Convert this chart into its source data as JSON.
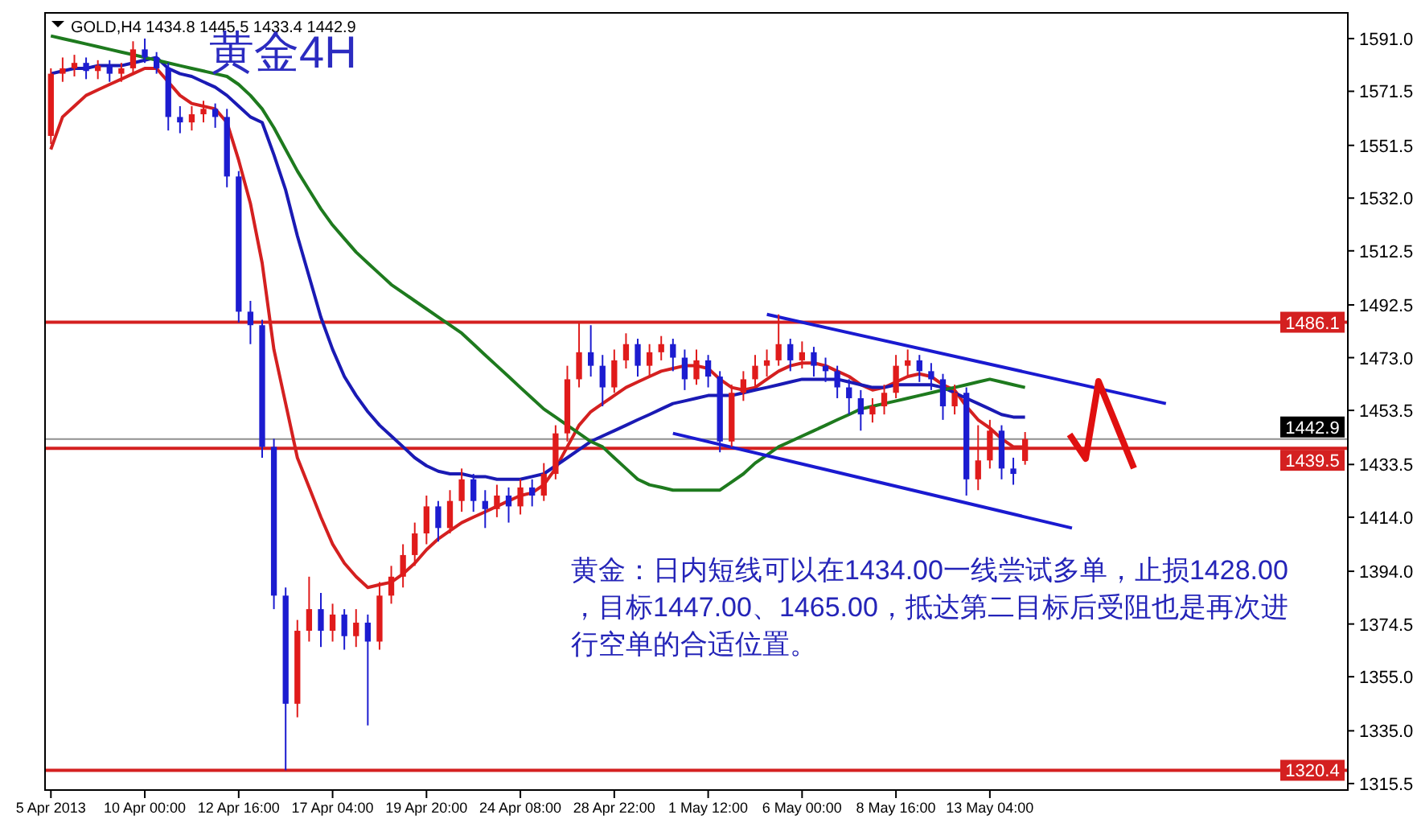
{
  "chart_data": {
    "type": "candlestick",
    "title": "黄金4H",
    "subtitle": "GOLD,H4  1434.8 1445.5 1433.4 1442.9",
    "categories": [
      "5 Apr 2013",
      null,
      null,
      null,
      null,
      null,
      null,
      null,
      "10 Apr 00:00",
      null,
      null,
      null,
      null,
      null,
      null,
      null,
      "12 Apr 16:00",
      null,
      null,
      null,
      null,
      null,
      null,
      null,
      "17 Apr 04:00",
      null,
      null,
      null,
      null,
      null,
      null,
      null,
      "19 Apr 20:00",
      null,
      null,
      null,
      null,
      null,
      null,
      null,
      "24 Apr 08:00",
      null,
      null,
      null,
      null,
      null,
      null,
      null,
      "28 Apr 22:00",
      null,
      null,
      null,
      null,
      null,
      null,
      null,
      "1 May 12:00",
      null,
      null,
      null,
      null,
      null,
      null,
      null,
      "6 May 00:00",
      null,
      null,
      null,
      null,
      null,
      null,
      null,
      "8 May 16:00",
      null,
      null,
      null,
      null,
      null,
      null,
      null,
      "13 May 04:00",
      null,
      null,
      null,
      null,
      null,
      null,
      null,
      null,
      null,
      null,
      null,
      null,
      null,
      null,
      null,
      null,
      null,
      null,
      null,
      null,
      null,
      null,
      null,
      null,
      null,
      null,
      null,
      null,
      null,
      null
    ],
    "ohlc": [
      [
        1555,
        1580,
        1552,
        1578
      ],
      [
        1578,
        1584,
        1575,
        1580
      ],
      [
        1580,
        1585,
        1577,
        1582
      ],
      [
        1582,
        1584,
        1576,
        1579
      ],
      [
        1579,
        1583,
        1576,
        1581
      ],
      [
        1581,
        1583,
        1575,
        1578
      ],
      [
        1578,
        1582,
        1575,
        1580
      ],
      [
        1580,
        1590,
        1578,
        1587
      ],
      [
        1587,
        1591,
        1582,
        1584
      ],
      [
        1584,
        1586,
        1578,
        1580
      ],
      [
        1580,
        1582,
        1557,
        1562
      ],
      [
        1562,
        1566,
        1556,
        1560
      ],
      [
        1560,
        1566,
        1557,
        1563
      ],
      [
        1563,
        1568,
        1560,
        1565
      ],
      [
        1565,
        1567,
        1558,
        1562
      ],
      [
        1562,
        1565,
        1536,
        1540
      ],
      [
        1540,
        1542,
        1486,
        1490
      ],
      [
        1490,
        1494,
        1478,
        1485
      ],
      [
        1485,
        1487,
        1436,
        1440
      ],
      [
        1440,
        1443,
        1380,
        1385
      ],
      [
        1385,
        1388,
        1320.4,
        1345
      ],
      [
        1345,
        1376,
        1340,
        1372
      ],
      [
        1372,
        1392,
        1368,
        1380
      ],
      [
        1380,
        1386,
        1366,
        1372
      ],
      [
        1372,
        1382,
        1368,
        1378
      ],
      [
        1378,
        1380,
        1365,
        1370
      ],
      [
        1370,
        1380,
        1366,
        1375
      ],
      [
        1375,
        1378,
        1337,
        1368
      ],
      [
        1368,
        1390,
        1365,
        1385
      ],
      [
        1385,
        1396,
        1382,
        1392
      ],
      [
        1392,
        1404,
        1388,
        1400
      ],
      [
        1400,
        1412,
        1396,
        1408
      ],
      [
        1408,
        1422,
        1404,
        1418
      ],
      [
        1418,
        1420,
        1405,
        1410
      ],
      [
        1410,
        1424,
        1408,
        1420
      ],
      [
        1420,
        1432,
        1416,
        1428
      ],
      [
        1428,
        1430,
        1416,
        1420
      ],
      [
        1420,
        1424,
        1410,
        1417
      ],
      [
        1417,
        1426,
        1414,
        1422
      ],
      [
        1422,
        1425,
        1412,
        1418
      ],
      [
        1418,
        1428,
        1415,
        1425
      ],
      [
        1425,
        1428,
        1418,
        1422
      ],
      [
        1422,
        1434,
        1420,
        1430
      ],
      [
        1430,
        1448,
        1428,
        1445
      ],
      [
        1445,
        1470,
        1442,
        1465
      ],
      [
        1465,
        1486,
        1462,
        1475
      ],
      [
        1475,
        1485,
        1466,
        1470
      ],
      [
        1470,
        1474,
        1455,
        1462
      ],
      [
        1462,
        1476,
        1460,
        1472
      ],
      [
        1472,
        1482,
        1469,
        1478
      ],
      [
        1478,
        1480,
        1466,
        1470
      ],
      [
        1470,
        1478,
        1466,
        1475
      ],
      [
        1475,
        1481,
        1472,
        1478
      ],
      [
        1478,
        1480,
        1468,
        1473
      ],
      [
        1473,
        1476,
        1461,
        1465
      ],
      [
        1465,
        1476,
        1463,
        1472
      ],
      [
        1472,
        1474,
        1462,
        1466
      ],
      [
        1466,
        1468,
        1438,
        1442
      ],
      [
        1442,
        1463,
        1440,
        1460
      ],
      [
        1460,
        1468,
        1457,
        1465
      ],
      [
        1465,
        1474,
        1462,
        1470
      ],
      [
        1470,
        1476,
        1466,
        1472
      ],
      [
        1472,
        1489,
        1470,
        1478
      ],
      [
        1478,
        1480,
        1468,
        1472
      ],
      [
        1472,
        1479,
        1469,
        1475
      ],
      [
        1475,
        1477,
        1466,
        1470
      ],
      [
        1470,
        1473,
        1464,
        1468
      ],
      [
        1468,
        1470,
        1458,
        1462
      ],
      [
        1462,
        1465,
        1452,
        1458
      ],
      [
        1458,
        1461,
        1446,
        1452
      ],
      [
        1452,
        1458,
        1449,
        1455
      ],
      [
        1455,
        1463,
        1452,
        1460
      ],
      [
        1460,
        1474,
        1458,
        1470
      ],
      [
        1470,
        1476,
        1466,
        1472
      ],
      [
        1472,
        1474,
        1464,
        1468
      ],
      [
        1468,
        1471,
        1461,
        1465
      ],
      [
        1465,
        1467,
        1450,
        1455
      ],
      [
        1455,
        1463,
        1452,
        1460
      ],
      [
        1460,
        1462,
        1422,
        1428
      ],
      [
        1428,
        1448,
        1424,
        1435
      ],
      [
        1435,
        1450,
        1432,
        1446
      ],
      [
        1446,
        1448,
        1428,
        1432
      ],
      [
        1432,
        1436,
        1426,
        1430
      ],
      [
        1434.8,
        1445.5,
        1433.4,
        1442.9
      ],
      null,
      null,
      null,
      null,
      null,
      null,
      null,
      null,
      null,
      null,
      null,
      null,
      null,
      null,
      null,
      null,
      null,
      null,
      null,
      null,
      null,
      null,
      null,
      null,
      null,
      null,
      null
    ],
    "colors": [
      "#e01b1b",
      "#e01b1b",
      "#e01b1b",
      "#1c1cd0",
      "#e01b1b",
      "#1c1cd0",
      "#e01b1b",
      "#e01b1b",
      "#1c1cd0",
      "#1c1cd0",
      "#1c1cd0",
      "#1c1cd0",
      "#e01b1b",
      "#e01b1b",
      "#1c1cd0",
      "#1c1cd0",
      "#1c1cd0",
      "#1c1cd0",
      "#1c1cd0",
      "#1c1cd0",
      "#1c1cd0",
      "#e01b1b",
      "#e01b1b",
      "#1c1cd0",
      "#e01b1b",
      "#1c1cd0",
      "#e01b1b",
      "#1c1cd0",
      "#e01b1b",
      "#e01b1b",
      "#e01b1b",
      "#e01b1b",
      "#e01b1b",
      "#1c1cd0",
      "#e01b1b",
      "#e01b1b",
      "#1c1cd0",
      "#1c1cd0",
      "#e01b1b",
      "#1c1cd0",
      "#e01b1b",
      "#1c1cd0",
      "#e01b1b",
      "#e01b1b",
      "#e01b1b",
      "#e01b1b",
      "#1c1cd0",
      "#1c1cd0",
      "#e01b1b",
      "#e01b1b",
      "#1c1cd0",
      "#e01b1b",
      "#e01b1b",
      "#1c1cd0",
      "#1c1cd0",
      "#e01b1b",
      "#1c1cd0",
      "#1c1cd0",
      "#e01b1b",
      "#e01b1b",
      "#e01b1b",
      "#e01b1b",
      "#e01b1b",
      "#1c1cd0",
      "#e01b1b",
      "#1c1cd0",
      "#1c1cd0",
      "#1c1cd0",
      "#1c1cd0",
      "#1c1cd0",
      "#e01b1b",
      "#e01b1b",
      "#e01b1b",
      "#e01b1b",
      "#1c1cd0",
      "#1c1cd0",
      "#1c1cd0",
      "#e01b1b",
      "#1c1cd0",
      "#e01b1b",
      "#e01b1b",
      "#1c1cd0",
      "#1c1cd0",
      "#e01b1b",
      null,
      null,
      null,
      null,
      null,
      null,
      null,
      null,
      null,
      null,
      null,
      null,
      null,
      null,
      null,
      null,
      null,
      null,
      null,
      null,
      null,
      null,
      null,
      null,
      null,
      null,
      null
    ],
    "series": [
      {
        "type": "line",
        "color": "#d42020",
        "values": [
          1550,
          1562,
          1566,
          1570,
          1572,
          1574,
          1576,
          1578,
          1580,
          1580,
          1575,
          1570,
          1567,
          1566,
          1565,
          1560,
          1546,
          1530,
          1508,
          1476,
          1456,
          1436,
          1425,
          1414,
          1404,
          1397,
          1392,
          1388,
          1389,
          1390,
          1393,
          1397,
          1402,
          1406,
          1409,
          1412,
          1414,
          1416,
          1418,
          1420,
          1422,
          1423,
          1426,
          1432,
          1440,
          1448,
          1453,
          1456,
          1459,
          1462,
          1464,
          1466,
          1468,
          1469,
          1470,
          1470,
          1469,
          1465,
          1462,
          1461,
          1462,
          1465,
          1468,
          1470,
          1471,
          1471,
          1470,
          1468,
          1466,
          1463,
          1461,
          1462,
          1464,
          1466,
          1467,
          1466,
          1463,
          1461,
          1455,
          1450,
          1447,
          1443,
          1440,
          1440,
          null,
          null,
          null,
          null,
          null,
          null,
          null,
          null,
          null,
          null,
          null,
          null,
          null,
          null,
          null,
          null,
          null,
          null,
          null,
          null,
          null,
          null,
          null,
          null,
          null,
          null,
          null
        ]
      },
      {
        "type": "line",
        "color": "#1a1ab4",
        "values": [
          1578,
          1579,
          1580,
          1580,
          1581,
          1581,
          1581,
          1582,
          1583,
          1584,
          1580,
          1578,
          1577,
          1575,
          1573,
          1570,
          1566,
          1562,
          1560,
          1548,
          1535,
          1518,
          1503,
          1488,
          1476,
          1466,
          1459,
          1453,
          1448,
          1444,
          1440,
          1436,
          1433,
          1431,
          1430,
          1430,
          1429,
          1429,
          1428,
          1428,
          1428,
          1429,
          1430,
          1433,
          1436,
          1439,
          1442,
          1444,
          1446,
          1448,
          1450,
          1452,
          1454,
          1456,
          1457,
          1458,
          1459,
          1459,
          1459,
          1460,
          1461,
          1462,
          1463,
          1464,
          1465,
          1465,
          1465,
          1465,
          1464,
          1463,
          1462,
          1462,
          1463,
          1463,
          1463,
          1463,
          1462,
          1460,
          1458,
          1456,
          1454,
          1452,
          1451,
          1451,
          null,
          null,
          null,
          null,
          null,
          null,
          null,
          null,
          null,
          null,
          null,
          null,
          null,
          null,
          null,
          null,
          null,
          null,
          null,
          null,
          null,
          null,
          null,
          null,
          null,
          null,
          null
        ]
      },
      {
        "type": "line",
        "color": "#1e7a1e",
        "values": [
          1592,
          1591,
          1590,
          1589,
          1588,
          1587,
          1586,
          1585,
          1584,
          1583,
          1582,
          1581,
          1580,
          1579,
          1578,
          1577,
          1574,
          1570,
          1565,
          1558,
          1550,
          1542,
          1535,
          1528,
          1522,
          1517,
          1512,
          1508,
          1504,
          1500,
          1497,
          1494,
          1491,
          1488,
          1485,
          1482,
          1478,
          1474,
          1470,
          1466,
          1462,
          1458,
          1454,
          1451,
          1448,
          1445,
          1442,
          1440,
          1436,
          1432,
          1428,
          1426,
          1425,
          1424,
          1424,
          1424,
          1424,
          1424,
          1427,
          1430,
          1434,
          1437,
          1440,
          1442,
          1444,
          1446,
          1448,
          1450,
          1452,
          1454,
          1455,
          1456,
          1457,
          1458,
          1459,
          1460,
          1461,
          1462,
          1463,
          1464,
          1465,
          1464,
          1463,
          1462,
          null,
          null,
          null,
          null,
          null,
          null,
          null,
          null,
          null,
          null,
          null,
          null,
          null,
          null,
          null,
          null,
          null,
          null,
          null,
          null,
          null,
          null,
          null,
          null,
          null,
          null,
          null
        ]
      },
      {
        "type": "line",
        "color": "#1a1ad0",
        "values": [
          null,
          null,
          null,
          null,
          null,
          null,
          null,
          null,
          null,
          null,
          null,
          null,
          null,
          null,
          null,
          null,
          null,
          null,
          null,
          null,
          null,
          null,
          null,
          null,
          null,
          null,
          null,
          null,
          null,
          null,
          null,
          null,
          null,
          null,
          null,
          null,
          null,
          null,
          null,
          null,
          null,
          null,
          null,
          null,
          null,
          null,
          null,
          null,
          null,
          null,
          null,
          null,
          null,
          null,
          null,
          null,
          null,
          null,
          null,
          null,
          null,
          1489,
          null,
          null,
          null,
          null,
          null,
          null,
          null,
          null,
          null,
          null,
          null,
          null,
          null,
          null,
          null,
          null,
          null,
          null,
          null,
          null,
          null,
          null,
          null,
          null,
          null,
          null,
          null,
          null,
          null,
          null,
          null,
          null,
          null,
          1456,
          null,
          null,
          null,
          null,
          null,
          null,
          null,
          null,
          null,
          null,
          null,
          null,
          null,
          null,
          null
        ]
      },
      {
        "type": "line",
        "color": "#1a1ad0",
        "values": [
          null,
          null,
          null,
          null,
          null,
          null,
          null,
          null,
          null,
          null,
          null,
          null,
          null,
          null,
          null,
          null,
          null,
          null,
          null,
          null,
          null,
          null,
          null,
          null,
          null,
          null,
          null,
          null,
          null,
          null,
          null,
          null,
          null,
          null,
          null,
          null,
          null,
          null,
          null,
          null,
          null,
          null,
          null,
          null,
          null,
          null,
          null,
          null,
          null,
          null,
          null,
          null,
          null,
          1445,
          null,
          null,
          null,
          null,
          null,
          null,
          null,
          null,
          null,
          null,
          null,
          null,
          null,
          null,
          null,
          null,
          null,
          null,
          null,
          null,
          null,
          null,
          null,
          null,
          null,
          null,
          null,
          null,
          null,
          null,
          null,
          null,
          null,
          1410,
          null,
          null,
          null,
          null,
          null,
          null,
          null,
          null,
          null,
          null,
          null,
          null,
          null,
          null,
          null,
          null,
          null,
          null,
          null,
          null,
          null,
          null,
          null
        ]
      }
    ],
    "ylim": [
      1313.1,
      1600.5
    ],
    "yticks": [
      {
        "value": 1591,
        "label": "1591.0"
      },
      {
        "value": 1571.5,
        "label": "1571.5"
      },
      {
        "value": 1551.5,
        "label": "1551.5"
      },
      {
        "value": 1532,
        "label": "1532.0"
      },
      {
        "value": 1512.5,
        "label": "1512.5"
      },
      {
        "value": 1492.5,
        "label": "1492.5"
      },
      {
        "value": 1473,
        "label": "1473.0"
      },
      {
        "value": 1453.5,
        "label": "1453.5"
      },
      {
        "value": 1433.5,
        "label": "1433.5"
      },
      {
        "value": 1414,
        "label": "1414.0"
      },
      {
        "value": 1394,
        "label": "1394.0"
      },
      {
        "value": 1374.5,
        "label": "1374.5"
      },
      {
        "value": 1355,
        "label": "1355.0"
      },
      {
        "value": 1335,
        "label": "1335.0"
      },
      {
        "value": 1315.5,
        "label": "1315.5"
      }
    ],
    "ref_lines": [
      {
        "axis": "y",
        "value": 1486.1,
        "label": "1486.1",
        "color": "#d42020"
      },
      {
        "axis": "y",
        "value": 1442.9,
        "label": "1442.9",
        "color": "#909090"
      },
      {
        "axis": "y",
        "value": 1439.5,
        "label": "1439.5",
        "color": "#d42020"
      },
      {
        "axis": "y",
        "value": 1320.4,
        "label": "1320.4",
        "color": "#d42020"
      }
    ],
    "annotations": [
      "黄金：日内短线可以在1434.00一线尝试多单，止损1428.00，目标1447.00、1465.00，抵达第二目标后受阻也是再次进行空单的合适位置。"
    ],
    "grid": false
  }
}
